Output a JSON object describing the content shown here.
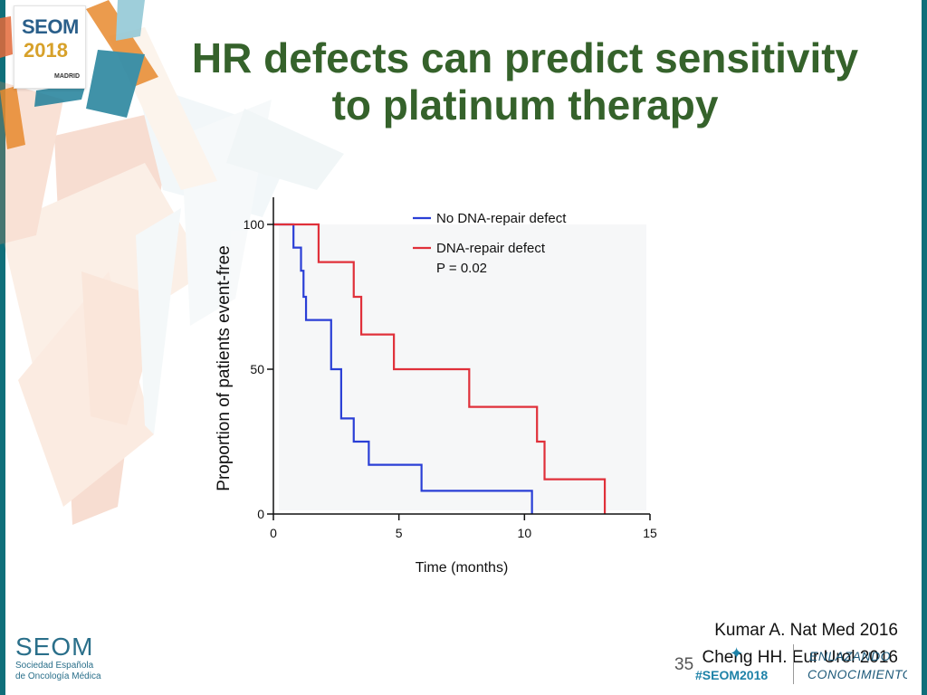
{
  "slide": {
    "title_line1": "HR defects can predict sensitivity",
    "title_line2": "to platinum therapy",
    "references": [
      "Kumar A. Nat Med 2016",
      "Cheng HH. Eur Urol 2016"
    ],
    "slide_number": "35",
    "hashtag": "#SEOM2018",
    "enlazando_text": "ENLAZANDO CONOCIMIENTO"
  },
  "logo_top": {
    "line1": "SEOM",
    "line2": "2018",
    "line3": "MADRID"
  },
  "logo_bottom": {
    "line1": "SEOM",
    "line2": "Sociedad Española",
    "line3": "de Oncología Médica"
  },
  "colors": {
    "title": "#35622b",
    "series_blue": "#2a3fd6",
    "series_red": "#e0303a",
    "brand_teal": "#0f6f7a"
  },
  "chart_data": {
    "type": "line",
    "step": true,
    "title": "",
    "xlabel": "Time (months)",
    "ylabel": "Proportion of patients event-free",
    "xlim": [
      0,
      15
    ],
    "ylim": [
      0,
      100
    ],
    "xticks": [
      0,
      5,
      10,
      15
    ],
    "yticks": [
      0,
      50,
      100
    ],
    "legend": "top-right",
    "annotation": "P = 0.02",
    "series": [
      {
        "name": "No DNA-repair defect",
        "color": "#2a3fd6",
        "x": [
          0,
          0.8,
          1.0,
          1.1,
          1.2,
          1.3,
          2.1,
          2.3,
          2.6,
          2.7,
          3.2,
          3.4,
          3.8,
          3.9,
          5.9,
          10.3,
          10.3
        ],
        "y": [
          100,
          92,
          92,
          84,
          75,
          67,
          67,
          50,
          50,
          33,
          25,
          25,
          17,
          17,
          8,
          8,
          0
        ]
      },
      {
        "name": "DNA-repair defect",
        "color": "#e0303a",
        "x": [
          0,
          1.8,
          3.2,
          3.5,
          4.8,
          7.8,
          10.5,
          10.7,
          10.8,
          13.2,
          13.2
        ],
        "y": [
          100,
          87,
          75,
          62,
          50,
          37,
          25,
          25,
          12,
          12,
          0
        ]
      }
    ]
  }
}
